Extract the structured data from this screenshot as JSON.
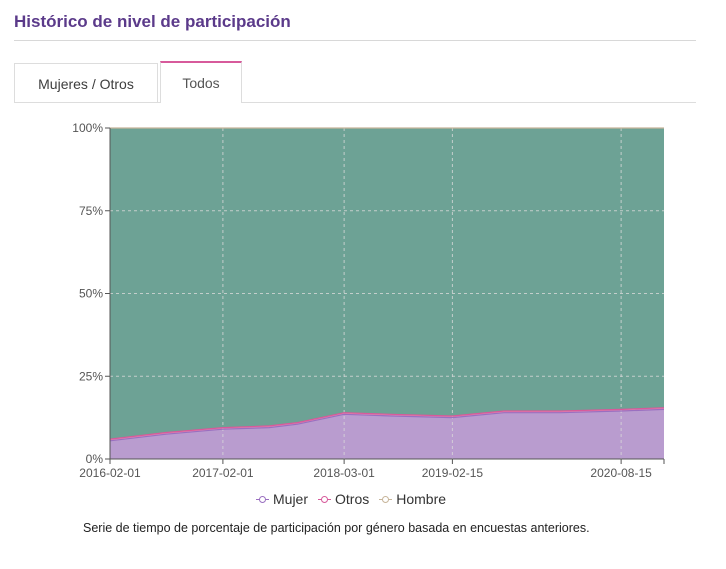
{
  "page": {
    "title": "Histórico de nivel de participación"
  },
  "tabs": [
    {
      "label": "Mujeres / Otros",
      "active": false
    },
    {
      "label": "Todos",
      "active": true
    }
  ],
  "colors": {
    "Mujer": "#b99ccf",
    "Mujer_line": "#9a6fc0",
    "Otros": "#e58bb3",
    "Otros_line": "#d75a9b",
    "Hombre": "#6da295",
    "Hombre_line": "#c7b59a",
    "grid": "#d9d9d9"
  },
  "chart_data": {
    "type": "area",
    "stacked": "percent",
    "x_ticks": [
      "2016-02-01",
      "2017-02-01",
      "2018-03-01",
      "2019-02-15",
      "2020-08-15"
    ],
    "y_ticks": [
      "0%",
      "25%",
      "50%",
      "75%",
      "100%"
    ],
    "ylim": [
      0,
      100
    ],
    "x": [
      "2016-02-01",
      "2016-08-01",
      "2017-02-01",
      "2017-07-01",
      "2017-10-01",
      "2018-03-01",
      "2018-08-01",
      "2019-02-15",
      "2019-08-01",
      "2020-02-01",
      "2020-08-15",
      "2021-01-01"
    ],
    "series": [
      {
        "name": "Mujer",
        "values": [
          5.5,
          7.5,
          9.0,
          9.5,
          10.5,
          13.5,
          13.0,
          12.5,
          14.0,
          14.0,
          14.5,
          15.0
        ]
      },
      {
        "name": "Otros",
        "values": [
          0.5,
          0.5,
          0.5,
          0.5,
          0.5,
          0.5,
          0.5,
          0.5,
          0.5,
          0.5,
          0.5,
          0.5
        ]
      },
      {
        "name": "Hombre",
        "values": [
          94.0,
          92.0,
          90.5,
          90.0,
          89.0,
          86.0,
          86.5,
          87.0,
          85.5,
          85.5,
          85.0,
          84.5
        ]
      }
    ],
    "legend": [
      "Mujer",
      "Otros",
      "Hombre"
    ],
    "legend_position": "bottom",
    "grid": true
  },
  "caption": "Serie de tiempo de porcentaje de participación por género basada en encuestas anteriores."
}
